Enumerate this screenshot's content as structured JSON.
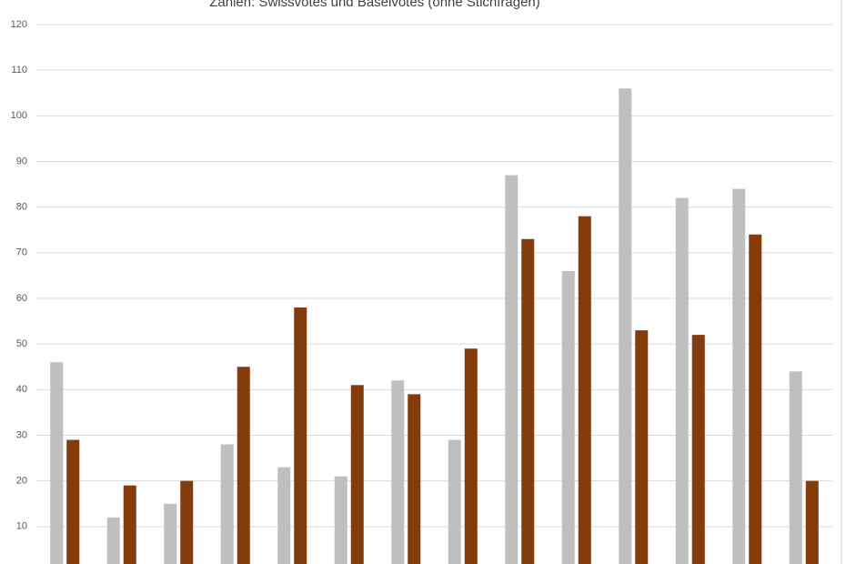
{
  "chart_data": {
    "type": "bar",
    "title": "Zahlen: Swissvotes und Baselvotes (ohne Stichfragen)",
    "series": [
      {
        "color": "#bfbfbf",
        "values": [
          46,
          12,
          15,
          28,
          23,
          21,
          42,
          29,
          87,
          66,
          106,
          82,
          84,
          44
        ]
      },
      {
        "color": "#843c0c",
        "values": [
          29,
          19,
          20,
          45,
          58,
          41,
          39,
          49,
          73,
          78,
          53,
          52,
          74,
          20
        ]
      }
    ],
    "ylim": [
      0,
      120
    ],
    "yticks": [
      10,
      20,
      30,
      40,
      50,
      60,
      70,
      80,
      90,
      100,
      110,
      120
    ],
    "grid": true
  }
}
